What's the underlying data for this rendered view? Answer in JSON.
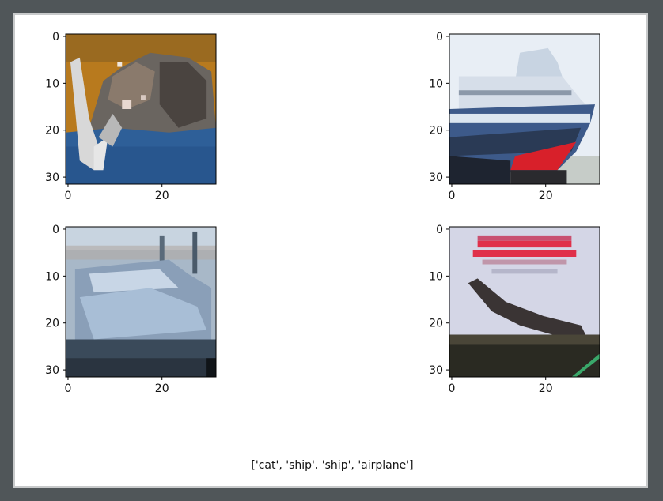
{
  "chart_data": [
    {
      "type": "image",
      "subject": "cat",
      "x_ticks": [
        0,
        20
      ],
      "y_ticks": [
        0,
        10,
        20,
        30
      ],
      "xlim": [
        -0.5,
        31.5
      ],
      "ylim": [
        31.5,
        -0.5
      ],
      "colors": {
        "background": "#b87a1e",
        "fur": "#6a6560",
        "blanket": "#2e5f98",
        "white": "#d8d8d8"
      }
    },
    {
      "type": "image",
      "subject": "ship",
      "x_ticks": [
        0,
        20
      ],
      "y_ticks": [
        0,
        10,
        20,
        30
      ],
      "xlim": [
        -0.5,
        31.5
      ],
      "ylim": [
        31.5,
        -0.5
      ],
      "colors": {
        "sky": "#e8eef5",
        "hull": "#3d5a8a",
        "stripe": "#d8202a",
        "dark": "#1e2430"
      }
    },
    {
      "type": "image",
      "subject": "ship",
      "x_ticks": [
        0,
        20
      ],
      "y_ticks": [
        0,
        10,
        20,
        30
      ],
      "xlim": [
        -0.5,
        31.5
      ],
      "ylim": [
        31.5,
        -0.5
      ],
      "colors": {
        "sky": "#a8b8c8",
        "boat": "#8a9fb8",
        "water": "#3a4a5a",
        "dark": "#101418"
      }
    },
    {
      "type": "image",
      "subject": "airplane",
      "x_ticks": [
        0,
        20
      ],
      "y_ticks": [
        0,
        10,
        20,
        30
      ],
      "xlim": [
        -0.5,
        31.5
      ],
      "ylim": [
        31.5,
        -0.5
      ],
      "colors": {
        "page": "#d4d6e6",
        "text": "#e0304a",
        "plane": "#3a3434",
        "ground": "#2a2a22",
        "green": "#3aa86a"
      }
    }
  ],
  "caption": "['cat', 'ship', 'ship', 'airplane']"
}
